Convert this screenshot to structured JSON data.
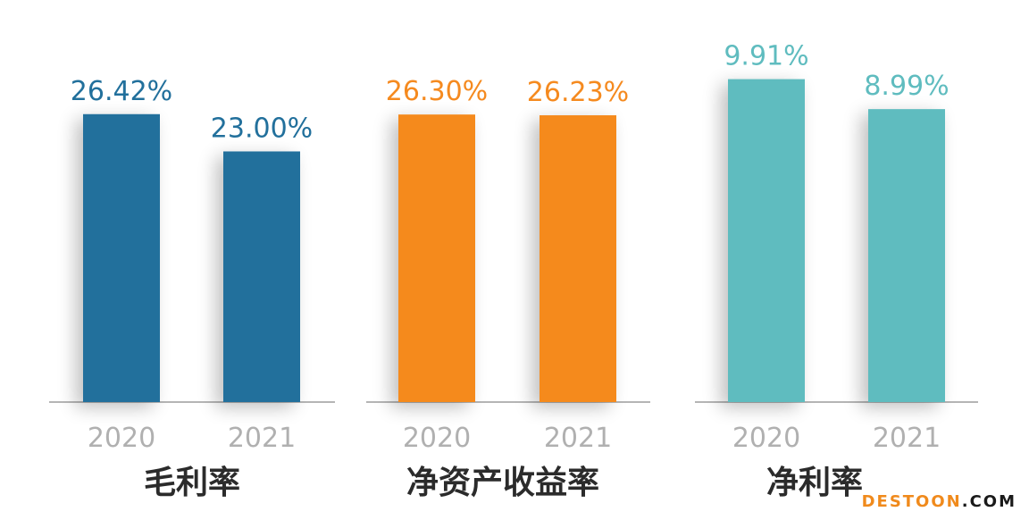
{
  "chart_data": [
    {
      "type": "bar",
      "title": "毛利率",
      "categories": [
        "2020",
        "2021"
      ],
      "values": [
        26.42,
        23.0
      ],
      "labels": [
        "26.42%",
        "23.00%"
      ],
      "unit": "%",
      "ylim": [
        0,
        30.5
      ],
      "color": "#22709c",
      "grid": false
    },
    {
      "type": "bar",
      "title": "净资产收益率",
      "categories": [
        "2020",
        "2021"
      ],
      "values": [
        26.3,
        26.23
      ],
      "labels": [
        "26.30%",
        "26.23%"
      ],
      "unit": "%",
      "ylim": [
        0,
        30.4
      ],
      "color": "#f58a1f",
      "grid": false
    },
    {
      "type": "bar",
      "title": "净利率",
      "categories": [
        "2020",
        "2021"
      ],
      "values": [
        9.91,
        8.99
      ],
      "labels": [
        "9.91%",
        "8.99%"
      ],
      "unit": "%",
      "ylim": [
        0,
        10.2
      ],
      "color": "#5fbcbf",
      "grid": false
    }
  ],
  "watermark": {
    "main": "DESTOON",
    "suffix": ".COM"
  },
  "colors": {
    "axis": "#b5b5b5",
    "tick_label": "#b0b0b0",
    "title": "#2b2b2b"
  }
}
